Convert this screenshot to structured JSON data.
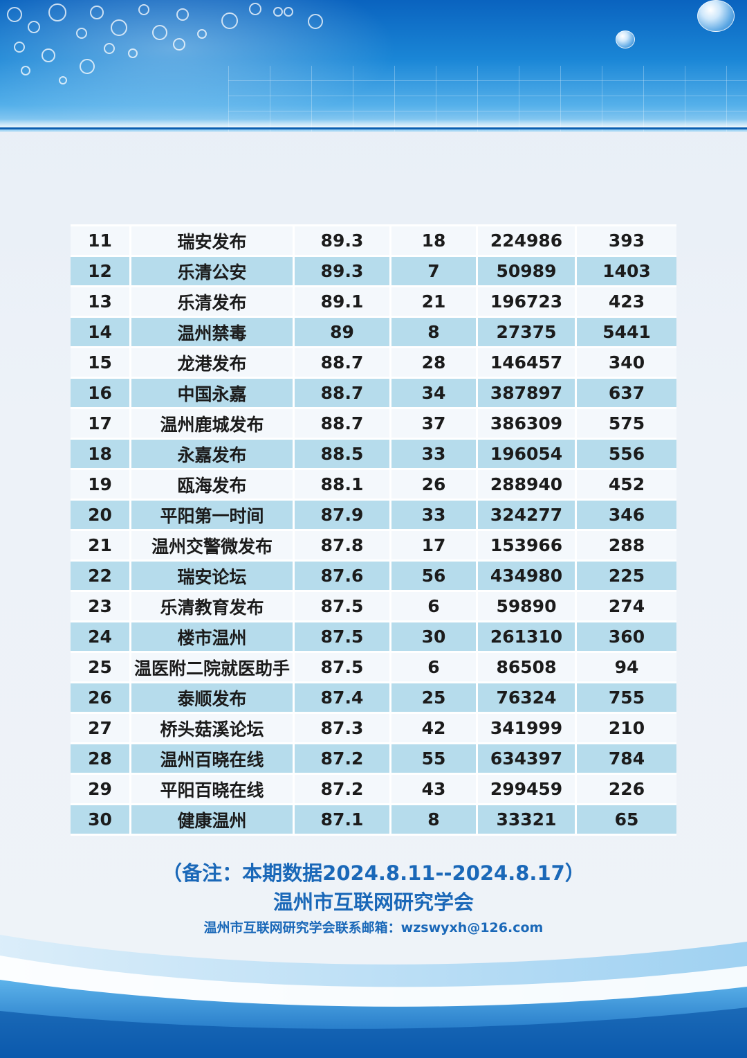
{
  "table": {
    "rows": [
      {
        "rank": "11",
        "name": "瑞安发布",
        "score": "89.3",
        "posts": "18",
        "reads": "224986",
        "likes": "393"
      },
      {
        "rank": "12",
        "name": "乐清公安",
        "score": "89.3",
        "posts": "7",
        "reads": "50989",
        "likes": "1403"
      },
      {
        "rank": "13",
        "name": "乐清发布",
        "score": "89.1",
        "posts": "21",
        "reads": "196723",
        "likes": "423"
      },
      {
        "rank": "14",
        "name": "温州禁毒",
        "score": "89",
        "posts": "8",
        "reads": "27375",
        "likes": "5441"
      },
      {
        "rank": "15",
        "name": "龙港发布",
        "score": "88.7",
        "posts": "28",
        "reads": "146457",
        "likes": "340"
      },
      {
        "rank": "16",
        "name": "中国永嘉",
        "score": "88.7",
        "posts": "34",
        "reads": "387897",
        "likes": "637"
      },
      {
        "rank": "17",
        "name": "温州鹿城发布",
        "score": "88.7",
        "posts": "37",
        "reads": "386309",
        "likes": "575"
      },
      {
        "rank": "18",
        "name": "永嘉发布",
        "score": "88.5",
        "posts": "33",
        "reads": "196054",
        "likes": "556"
      },
      {
        "rank": "19",
        "name": "瓯海发布",
        "score": "88.1",
        "posts": "26",
        "reads": "288940",
        "likes": "452"
      },
      {
        "rank": "20",
        "name": "平阳第一时间",
        "score": "87.9",
        "posts": "33",
        "reads": "324277",
        "likes": "346"
      },
      {
        "rank": "21",
        "name": "温州交警微发布",
        "score": "87.8",
        "posts": "17",
        "reads": "153966",
        "likes": "288"
      },
      {
        "rank": "22",
        "name": "瑞安论坛",
        "score": "87.6",
        "posts": "56",
        "reads": "434980",
        "likes": "225"
      },
      {
        "rank": "23",
        "name": "乐清教育发布",
        "score": "87.5",
        "posts": "6",
        "reads": "59890",
        "likes": "274"
      },
      {
        "rank": "24",
        "name": "楼市温州",
        "score": "87.5",
        "posts": "30",
        "reads": "261310",
        "likes": "360"
      },
      {
        "rank": "25",
        "name": "温医附二院就医助手",
        "score": "87.5",
        "posts": "6",
        "reads": "86508",
        "likes": "94"
      },
      {
        "rank": "26",
        "name": "泰顺发布",
        "score": "87.4",
        "posts": "25",
        "reads": "76324",
        "likes": "755"
      },
      {
        "rank": "27",
        "name": "桥头菇溪论坛",
        "score": "87.3",
        "posts": "42",
        "reads": "341999",
        "likes": "210"
      },
      {
        "rank": "28",
        "name": "温州百晓在线",
        "score": "87.2",
        "posts": "55",
        "reads": "634397",
        "likes": "784"
      },
      {
        "rank": "29",
        "name": "平阳百晓在线",
        "score": "87.2",
        "posts": "43",
        "reads": "299459",
        "likes": "226"
      },
      {
        "rank": "30",
        "name": "健康温州",
        "score": "87.1",
        "posts": "8",
        "reads": "33321",
        "likes": "65"
      }
    ]
  },
  "notes": {
    "period": "（备注：本期数据2024.8.11--2024.8.17）",
    "organization": "温州市互联网研究学会",
    "contact": "温州市互联网研究学会联系邮箱：wzswyxh@126.com"
  },
  "colors": {
    "accent": "#1a68b8",
    "row_even": "#b6dcec",
    "row_odd": "#f4f8fc"
  }
}
